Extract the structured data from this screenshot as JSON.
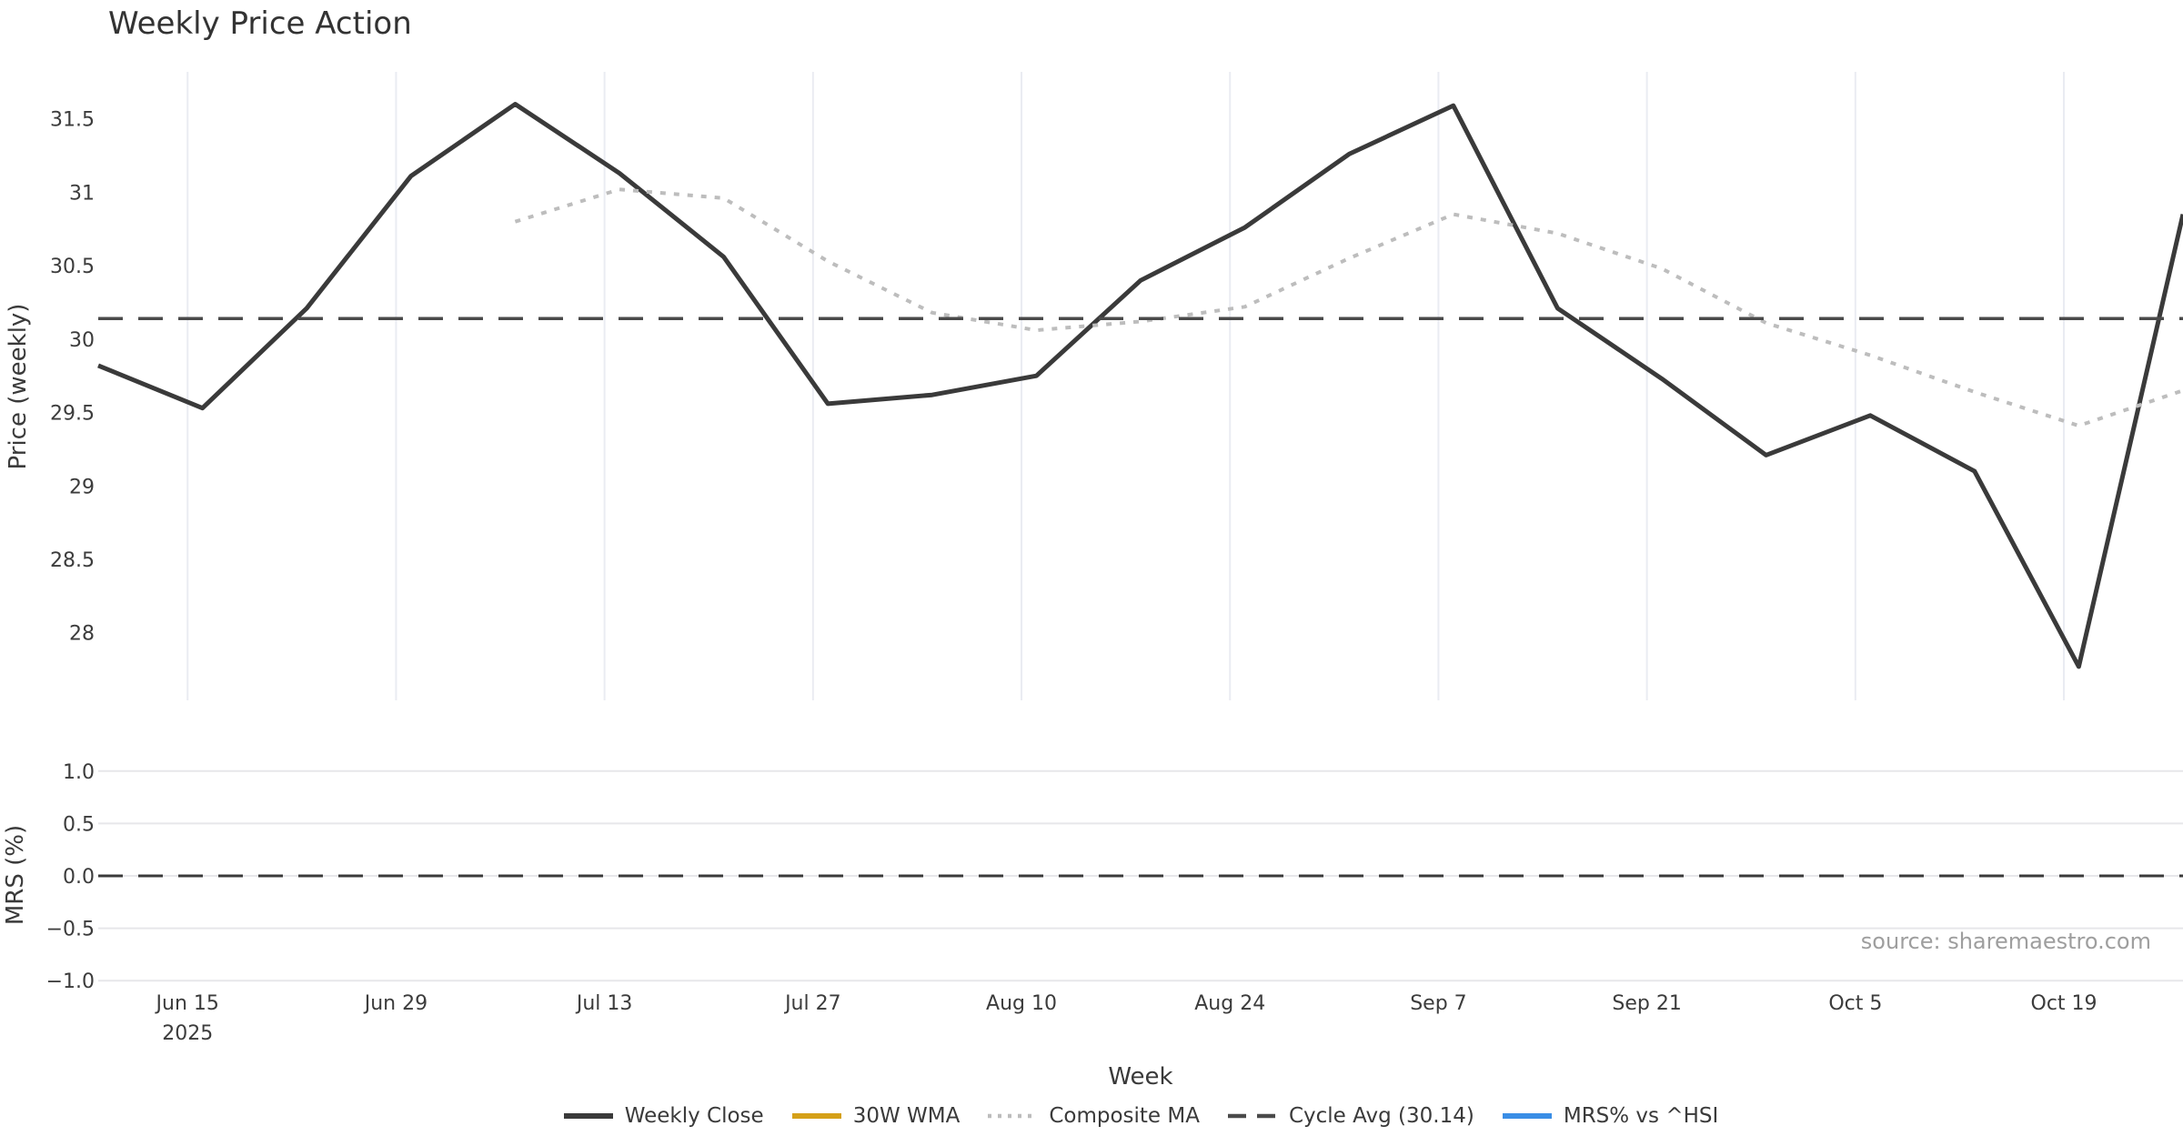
{
  "chart_data": {
    "type": "line",
    "title": "Weekly Price Action",
    "xlabel": "Week",
    "source": "source: sharemaestro.com",
    "x": {
      "start": "2025-06-09",
      "end": "2025-10-27",
      "tick_dates": [
        "2025-06-15",
        "2025-06-29",
        "2025-07-13",
        "2025-07-27",
        "2025-08-10",
        "2025-08-24",
        "2025-09-07",
        "2025-09-21",
        "2025-10-05",
        "2025-10-19"
      ],
      "tick_labels": [
        "Jun 15",
        "Jun 29",
        "Jul 13",
        "Jul 27",
        "Aug 10",
        "Aug 24",
        "Sep 7",
        "Sep 21",
        "Oct 5",
        "Oct 19"
      ],
      "year_sublabel": {
        "index": 0,
        "text": "2025"
      }
    },
    "panels": [
      {
        "id": "price",
        "ylabel": "Price (weekly)",
        "ylim": [
          27.54,
          31.82
        ],
        "yticks": [
          28,
          28.5,
          29,
          29.5,
          30,
          30.5,
          31,
          31.5
        ],
        "ytick_labels": [
          "28",
          "28.5",
          "29",
          "29.5",
          "30",
          "30.5",
          "31",
          "31.5"
        ],
        "grid": "vertical"
      },
      {
        "id": "mrs",
        "ylabel": "MRS (%)",
        "ylim": [
          -1.05,
          1.05
        ],
        "yticks": [
          1.0,
          0.5,
          0.0,
          -0.5,
          -1.0
        ],
        "ytick_labels": [
          "1.0",
          "0.5",
          "0.0",
          "−0.5",
          "−1.0"
        ],
        "grid": "horizontal",
        "zero_line_dashed": true
      }
    ],
    "series": [
      {
        "name": "Weekly Close",
        "panel": "price",
        "style": "solid",
        "color": "#3a3a3a",
        "width": 5,
        "dates": [
          "2025-06-09",
          "2025-06-16",
          "2025-06-23",
          "2025-06-30",
          "2025-07-07",
          "2025-07-14",
          "2025-07-21",
          "2025-07-28",
          "2025-08-04",
          "2025-08-11",
          "2025-08-18",
          "2025-08-25",
          "2025-09-01",
          "2025-09-08",
          "2025-09-15",
          "2025-09-22",
          "2025-09-29",
          "2025-10-06",
          "2025-10-13",
          "2025-10-20",
          "2025-10-27"
        ],
        "values": [
          29.82,
          29.53,
          30.21,
          31.11,
          31.6,
          31.13,
          30.56,
          29.56,
          29.62,
          29.75,
          30.4,
          30.76,
          31.26,
          31.59,
          30.21,
          29.73,
          29.21,
          29.48,
          29.1,
          27.77,
          30.85
        ]
      },
      {
        "name": "30W WMA",
        "panel": "price",
        "style": "solid",
        "color": "#d5a018",
        "width": 5,
        "dates": [],
        "values": []
      },
      {
        "name": "Composite MA",
        "panel": "price",
        "style": "dotted",
        "color": "#bdbdbd",
        "width": 4,
        "dates": [
          "2025-07-07",
          "2025-07-14",
          "2025-07-21",
          "2025-07-28",
          "2025-08-04",
          "2025-08-11",
          "2025-08-18",
          "2025-08-25",
          "2025-09-01",
          "2025-09-08",
          "2025-09-15",
          "2025-09-22",
          "2025-09-29",
          "2025-10-06",
          "2025-10-13",
          "2025-10-20",
          "2025-10-27"
        ],
        "values": [
          30.8,
          31.02,
          30.96,
          30.53,
          30.18,
          30.06,
          30.12,
          30.22,
          30.55,
          30.85,
          30.72,
          30.48,
          30.11,
          29.89,
          29.64,
          29.41,
          29.65
        ]
      },
      {
        "name": "Cycle Avg (30.14)",
        "panel": "price",
        "style": "dashed",
        "color": "#4a4a4a",
        "width": 3.5,
        "constant": 30.14
      },
      {
        "name": "MRS% vs ^HSI",
        "panel": "mrs",
        "style": "solid",
        "color": "#3a8ee6",
        "width": 5,
        "dates": [],
        "values": []
      }
    ],
    "grid_color_vertical": "#eaecf2",
    "grid_color_horizontal": "#e7e7ea",
    "tick_label_color": "#3c3c3c"
  }
}
